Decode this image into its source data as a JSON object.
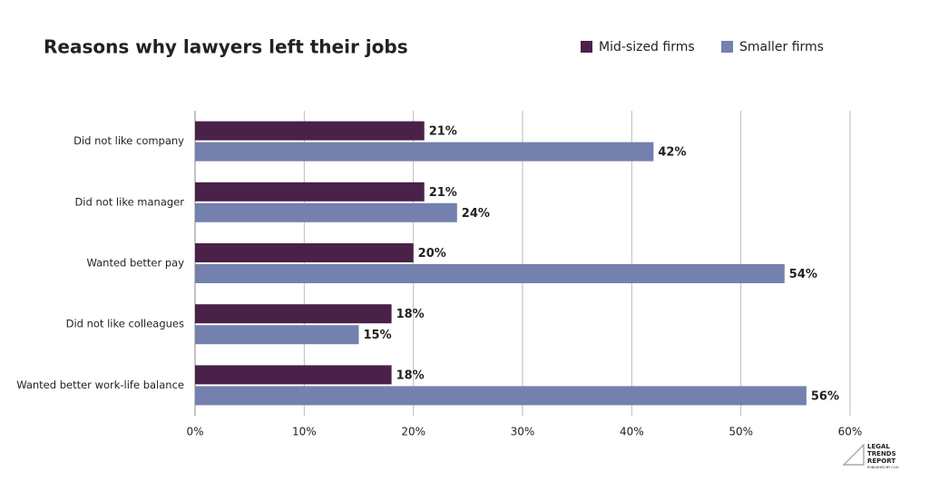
{
  "chart_data": {
    "type": "hbar",
    "title": "Reasons why lawyers left their jobs",
    "categories": [
      "Did not like company",
      "Did not like manager",
      "Wanted better pay",
      "Did not like colleagues",
      "Wanted better work-life balance"
    ],
    "series": [
      {
        "name": "Mid-sized firms",
        "color": "#4a2148",
        "values": [
          21,
          21,
          20,
          18,
          18
        ],
        "value_labels": [
          "21%",
          "21%",
          "20%",
          "18%",
          "18%"
        ]
      },
      {
        "name": "Smaller firms",
        "color": "#7480ad",
        "values": [
          42,
          24,
          54,
          15,
          56
        ],
        "value_labels": [
          "42%",
          "24%",
          "54%",
          "15%",
          "56%"
        ]
      }
    ],
    "xlim": [
      0,
      60
    ],
    "xticks": [
      {
        "value": 0,
        "label": "0%"
      },
      {
        "value": 10,
        "label": "10%"
      },
      {
        "value": 20,
        "label": "20%"
      },
      {
        "value": 30,
        "label": "30%"
      },
      {
        "value": 40,
        "label": "40%"
      },
      {
        "value": 50,
        "label": "50%"
      },
      {
        "value": 60,
        "label": "60%"
      }
    ],
    "grid": true,
    "legend": "top-right"
  },
  "logo": {
    "lines": [
      "LEGAL",
      "TRENDS",
      "REPORT"
    ],
    "sub": "PUBLISHED BY CLIO"
  }
}
